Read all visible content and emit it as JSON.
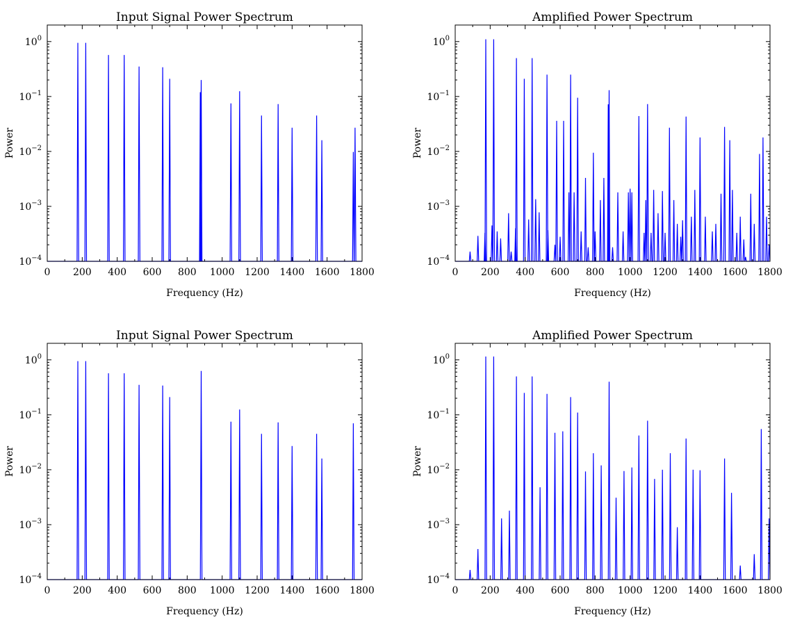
{
  "figure": {
    "line_color": "#0000ff",
    "background": "#ffffff"
  },
  "chart_data": [
    {
      "type": "line",
      "title": "Input Signal Power Spectrum",
      "xlabel": "Frequency (Hz)",
      "ylabel": "Power",
      "xlim": [
        0,
        1800
      ],
      "ylim": [
        0.0001,
        2
      ],
      "yscale": "log",
      "xticks": [
        "0",
        "200",
        "400",
        "600",
        "800",
        "1000",
        "1200",
        "1400",
        "1600",
        "1800"
      ],
      "yticks": [
        "10^-4",
        "10^-3",
        "10^-2",
        "10^-1",
        "10^0"
      ],
      "grid": false,
      "peaks": [
        {
          "x": 175,
          "y": 0.95
        },
        {
          "x": 220,
          "y": 0.95
        },
        {
          "x": 350,
          "y": 0.57
        },
        {
          "x": 440,
          "y": 0.57
        },
        {
          "x": 525,
          "y": 0.35
        },
        {
          "x": 660,
          "y": 0.34
        },
        {
          "x": 700,
          "y": 0.21
        },
        {
          "x": 875,
          "y": 0.12
        },
        {
          "x": 880,
          "y": 0.2
        },
        {
          "x": 1050,
          "y": 0.075
        },
        {
          "x": 1100,
          "y": 0.125
        },
        {
          "x": 1225,
          "y": 0.045
        },
        {
          "x": 1320,
          "y": 0.073
        },
        {
          "x": 1400,
          "y": 0.027
        },
        {
          "x": 1540,
          "y": 0.045
        },
        {
          "x": 1570,
          "y": 0.016
        },
        {
          "x": 1750,
          "y": 0.0098
        },
        {
          "x": 1760,
          "y": 0.027
        }
      ]
    },
    {
      "type": "line",
      "title": "Amplified Power Spectrum",
      "xlabel": "Frequency (Hz)",
      "ylabel": "Power",
      "xlim": [
        0,
        1800
      ],
      "ylim": [
        0.0001,
        2
      ],
      "yscale": "log",
      "xticks": [
        "0",
        "200",
        "400",
        "600",
        "800",
        "1000",
        "1200",
        "1400",
        "1600",
        "1800"
      ],
      "yticks": [
        "10^-4",
        "10^-3",
        "10^-2",
        "10^-1",
        "10^0"
      ],
      "grid": false,
      "peaks": [
        {
          "x": 85,
          "y": 0.00015
        },
        {
          "x": 130,
          "y": 0.00029
        },
        {
          "x": 170,
          "y": 0.00033
        },
        {
          "x": 175,
          "y": 1.1
        },
        {
          "x": 210,
          "y": 0.00045
        },
        {
          "x": 220,
          "y": 1.1
        },
        {
          "x": 240,
          "y": 0.00035
        },
        {
          "x": 260,
          "y": 0.00026
        },
        {
          "x": 305,
          "y": 0.00075
        },
        {
          "x": 320,
          "y": 0.00015
        },
        {
          "x": 345,
          "y": 0.0004
        },
        {
          "x": 350,
          "y": 0.5
        },
        {
          "x": 395,
          "y": 0.21
        },
        {
          "x": 420,
          "y": 0.00058
        },
        {
          "x": 440,
          "y": 0.5
        },
        {
          "x": 460,
          "y": 0.00135
        },
        {
          "x": 480,
          "y": 0.00078
        },
        {
          "x": 525,
          "y": 0.25
        },
        {
          "x": 530,
          "y": 0.00037
        },
        {
          "x": 570,
          "y": 0.0002
        },
        {
          "x": 580,
          "y": 0.036
        },
        {
          "x": 600,
          "y": 0.00028
        },
        {
          "x": 620,
          "y": 0.036
        },
        {
          "x": 650,
          "y": 0.0018
        },
        {
          "x": 660,
          "y": 0.25
        },
        {
          "x": 680,
          "y": 0.0018
        },
        {
          "x": 700,
          "y": 0.095
        },
        {
          "x": 720,
          "y": 0.00035
        },
        {
          "x": 745,
          "y": 0.0033
        },
        {
          "x": 760,
          "y": 0.00018
        },
        {
          "x": 790,
          "y": 0.0095
        },
        {
          "x": 800,
          "y": 0.00035
        },
        {
          "x": 830,
          "y": 0.0013
        },
        {
          "x": 850,
          "y": 0.0033
        },
        {
          "x": 875,
          "y": 0.072
        },
        {
          "x": 880,
          "y": 0.13
        },
        {
          "x": 900,
          "y": 0.00018
        },
        {
          "x": 930,
          "y": 0.0018
        },
        {
          "x": 960,
          "y": 0.00035
        },
        {
          "x": 990,
          "y": 0.0018
        },
        {
          "x": 1000,
          "y": 0.0021
        },
        {
          "x": 1010,
          "y": 0.0018
        },
        {
          "x": 1050,
          "y": 0.044
        },
        {
          "x": 1080,
          "y": 0.00033
        },
        {
          "x": 1090,
          "y": 0.0013
        },
        {
          "x": 1100,
          "y": 0.073
        },
        {
          "x": 1120,
          "y": 0.00033
        },
        {
          "x": 1135,
          "y": 0.002
        },
        {
          "x": 1160,
          "y": 0.00075
        },
        {
          "x": 1185,
          "y": 0.0019
        },
        {
          "x": 1200,
          "y": 0.00033
        },
        {
          "x": 1225,
          "y": 0.027
        },
        {
          "x": 1250,
          "y": 0.0013
        },
        {
          "x": 1270,
          "y": 0.00048
        },
        {
          "x": 1290,
          "y": 0.00028
        },
        {
          "x": 1300,
          "y": 0.00056
        },
        {
          "x": 1320,
          "y": 0.043
        },
        {
          "x": 1350,
          "y": 0.00065
        },
        {
          "x": 1370,
          "y": 0.002
        },
        {
          "x": 1400,
          "y": 0.018
        },
        {
          "x": 1430,
          "y": 0.00065
        },
        {
          "x": 1470,
          "y": 0.00035
        },
        {
          "x": 1490,
          "y": 0.00048
        },
        {
          "x": 1520,
          "y": 0.0017
        },
        {
          "x": 1540,
          "y": 0.028
        },
        {
          "x": 1570,
          "y": 0.016
        },
        {
          "x": 1585,
          "y": 0.002
        },
        {
          "x": 1610,
          "y": 0.00033
        },
        {
          "x": 1630,
          "y": 0.00065
        },
        {
          "x": 1650,
          "y": 0.00025
        },
        {
          "x": 1660,
          "y": 0.00012
        },
        {
          "x": 1690,
          "y": 0.0017
        },
        {
          "x": 1710,
          "y": 0.00048
        },
        {
          "x": 1740,
          "y": 0.009
        },
        {
          "x": 1760,
          "y": 0.018
        },
        {
          "x": 1780,
          "y": 0.00065
        },
        {
          "x": 1795,
          "y": 0.0002
        }
      ]
    },
    {
      "type": "line",
      "title": "Input Signal Power Spectrum",
      "xlabel": "Frequency (Hz)",
      "ylabel": "Power",
      "xlim": [
        0,
        1800
      ],
      "ylim": [
        0.0001,
        2
      ],
      "yscale": "log",
      "xticks": [
        "0",
        "200",
        "400",
        "600",
        "800",
        "1000",
        "1200",
        "1400",
        "1600",
        "1800"
      ],
      "yticks": [
        "10^-4",
        "10^-3",
        "10^-2",
        "10^-1",
        "10^0"
      ],
      "grid": false,
      "peaks": [
        {
          "x": 175,
          "y": 0.95
        },
        {
          "x": 220,
          "y": 0.95
        },
        {
          "x": 350,
          "y": 0.57
        },
        {
          "x": 440,
          "y": 0.57
        },
        {
          "x": 525,
          "y": 0.35
        },
        {
          "x": 660,
          "y": 0.34
        },
        {
          "x": 700,
          "y": 0.21
        },
        {
          "x": 880,
          "y": 0.63
        },
        {
          "x": 1050,
          "y": 0.075
        },
        {
          "x": 1100,
          "y": 0.125
        },
        {
          "x": 1225,
          "y": 0.045
        },
        {
          "x": 1320,
          "y": 0.073
        },
        {
          "x": 1400,
          "y": 0.027
        },
        {
          "x": 1540,
          "y": 0.045
        },
        {
          "x": 1570,
          "y": 0.016
        },
        {
          "x": 1750,
          "y": 0.07
        }
      ]
    },
    {
      "type": "line",
      "title": "Amplified Power Spectrum",
      "xlabel": "Frequency (Hz)",
      "ylabel": "Power",
      "xlim": [
        0,
        1800
      ],
      "ylim": [
        0.0001,
        2
      ],
      "yscale": "log",
      "xticks": [
        "0",
        "200",
        "400",
        "600",
        "800",
        "1000",
        "1200",
        "1400",
        "1600",
        "1800"
      ],
      "yticks": [
        "10^-4",
        "10^-3",
        "10^-2",
        "10^-1",
        "10^0"
      ],
      "grid": false,
      "peaks": [
        {
          "x": 85,
          "y": 0.00015
        },
        {
          "x": 130,
          "y": 0.00036
        },
        {
          "x": 175,
          "y": 1.15
        },
        {
          "x": 220,
          "y": 1.15
        },
        {
          "x": 265,
          "y": 0.0013
        },
        {
          "x": 310,
          "y": 0.0018
        },
        {
          "x": 350,
          "y": 0.5
        },
        {
          "x": 395,
          "y": 0.25
        },
        {
          "x": 440,
          "y": 0.5
        },
        {
          "x": 485,
          "y": 0.0048
        },
        {
          "x": 525,
          "y": 0.24
        },
        {
          "x": 570,
          "y": 0.047
        },
        {
          "x": 615,
          "y": 0.05
        },
        {
          "x": 660,
          "y": 0.21
        },
        {
          "x": 700,
          "y": 0.11
        },
        {
          "x": 745,
          "y": 0.0093
        },
        {
          "x": 790,
          "y": 0.02
        },
        {
          "x": 835,
          "y": 0.012
        },
        {
          "x": 880,
          "y": 0.4
        },
        {
          "x": 920,
          "y": 0.0031
        },
        {
          "x": 965,
          "y": 0.0095
        },
        {
          "x": 1010,
          "y": 0.011
        },
        {
          "x": 1050,
          "y": 0.042
        },
        {
          "x": 1100,
          "y": 0.078
        },
        {
          "x": 1140,
          "y": 0.0068
        },
        {
          "x": 1185,
          "y": 0.01
        },
        {
          "x": 1230,
          "y": 0.02
        },
        {
          "x": 1270,
          "y": 0.0009
        },
        {
          "x": 1320,
          "y": 0.037
        },
        {
          "x": 1360,
          "y": 0.01
        },
        {
          "x": 1400,
          "y": 0.0098
        },
        {
          "x": 1490,
          "y": 0.0001
        },
        {
          "x": 1540,
          "y": 0.016
        },
        {
          "x": 1580,
          "y": 0.0038
        },
        {
          "x": 1630,
          "y": 0.00018
        },
        {
          "x": 1710,
          "y": 0.00029
        },
        {
          "x": 1750,
          "y": 0.055
        },
        {
          "x": 1795,
          "y": 0.0013
        }
      ]
    }
  ]
}
